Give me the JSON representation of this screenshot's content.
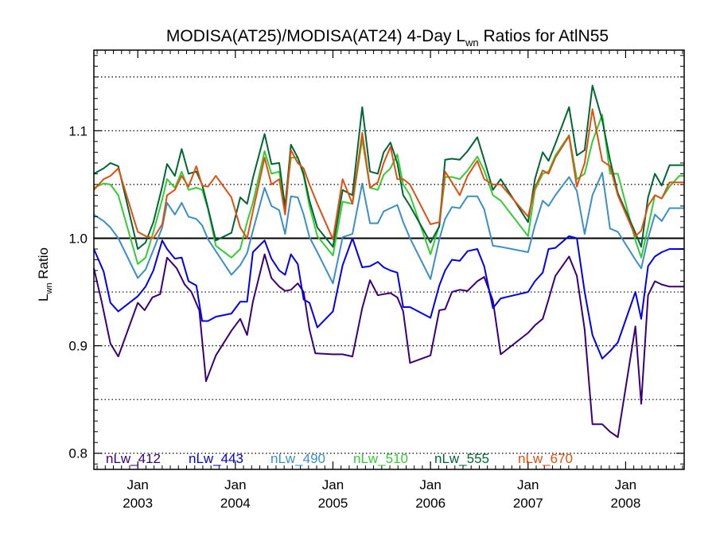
{
  "chart_data": {
    "type": "line",
    "title": {
      "main": "MODISA(AT25)/MODISA(AT24) 4-Day L",
      "sub": "wn",
      "rest": " Ratios for AtlN55"
    },
    "ylabel": {
      "main": "L",
      "sub": "wn",
      "rest": " Ratio"
    },
    "xlim": [
      2002.55,
      2008.6
    ],
    "ylim": [
      0.785,
      1.175
    ],
    "yticks": [
      {
        "value": 0.8,
        "label": "0.8"
      },
      {
        "value": 0.9,
        "label": "0.9"
      },
      {
        "value": 1.0,
        "label": "1.0"
      },
      {
        "value": 1.1,
        "label": "1.1"
      }
    ],
    "gridlines": [
      0.8,
      0.85,
      0.9,
      0.95,
      1.05,
      1.1,
      1.15
    ],
    "reference_line": 1.0,
    "xticks": [
      {
        "value": 2003.0,
        "month": "Jan",
        "year": "2003"
      },
      {
        "value": 2004.0,
        "month": "Jan",
        "year": "2004"
      },
      {
        "value": 2005.0,
        "month": "Jan",
        "year": "2005"
      },
      {
        "value": 2006.0,
        "month": "Jan",
        "year": "2006"
      },
      {
        "value": 2007.0,
        "month": "Jan",
        "year": "2007"
      },
      {
        "value": 2008.0,
        "month": "Jan",
        "year": "2008"
      }
    ],
    "legend_position": "bottom",
    "series": [
      {
        "name": "nLw_412",
        "color": "#3a0078",
        "x": [
          2002.55,
          2002.63,
          2002.72,
          2002.8,
          2003.0,
          2003.07,
          2003.15,
          2003.23,
          2003.3,
          2003.4,
          2003.48,
          2003.55,
          2003.63,
          2003.7,
          2003.8,
          2003.96,
          2004.05,
          2004.12,
          2004.18,
          2004.3,
          2004.37,
          2004.45,
          2004.51,
          2004.57,
          2004.64,
          2004.7,
          2004.76,
          2004.82,
          2005.0,
          2005.1,
          2005.2,
          2005.3,
          2005.38,
          2005.46,
          2005.52,
          2005.59,
          2005.66,
          2005.72,
          2005.79,
          2006.0,
          2006.09,
          2006.15,
          2006.22,
          2006.3,
          2006.38,
          2006.48,
          2006.55,
          2006.64,
          2006.72,
          2007.0,
          2007.07,
          2007.15,
          2007.21,
          2007.28,
          2007.42,
          2007.5,
          2007.58,
          2007.66,
          2007.76,
          2007.84,
          2007.92,
          2008.1,
          2008.16,
          2008.23,
          2008.3,
          2008.37,
          2008.45,
          2008.55,
          2008.6
        ],
        "y": [
          0.972,
          0.941,
          0.902,
          0.89,
          0.94,
          0.933,
          0.945,
          0.948,
          0.982,
          0.972,
          0.957,
          0.95,
          0.933,
          0.867,
          0.891,
          0.914,
          0.925,
          0.91,
          0.941,
          0.985,
          0.963,
          0.955,
          0.951,
          0.952,
          0.958,
          0.95,
          0.915,
          0.893,
          0.892,
          0.892,
          0.89,
          0.935,
          0.961,
          0.947,
          0.948,
          0.949,
          0.945,
          0.932,
          0.884,
          0.891,
          0.933,
          0.934,
          0.95,
          0.952,
          0.951,
          0.96,
          0.964,
          0.942,
          0.892,
          0.912,
          0.919,
          0.925,
          0.943,
          0.965,
          0.983,
          0.965,
          0.915,
          0.827,
          0.827,
          0.82,
          0.815,
          0.918,
          0.846,
          0.947,
          0.96,
          0.957,
          0.955,
          0.955,
          0.955
        ]
      },
      {
        "name": "nLw_443",
        "color": "#0000ee",
        "x": [
          2002.55,
          2002.65,
          2002.72,
          2002.8,
          2003.0,
          2003.08,
          2003.16,
          2003.25,
          2003.3,
          2003.38,
          2003.45,
          2003.52,
          2003.6,
          2003.66,
          2003.72,
          2003.8,
          2003.96,
          2004.05,
          2004.12,
          2004.18,
          2004.3,
          2004.37,
          2004.45,
          2004.51,
          2004.57,
          2004.64,
          2004.7,
          2004.76,
          2004.84,
          2005.0,
          2005.1,
          2005.2,
          2005.3,
          2005.38,
          2005.46,
          2005.52,
          2005.59,
          2005.66,
          2005.72,
          2005.79,
          2006.0,
          2006.09,
          2006.15,
          2006.22,
          2006.3,
          2006.38,
          2006.48,
          2006.55,
          2006.64,
          2006.72,
          2007.0,
          2007.07,
          2007.15,
          2007.21,
          2007.28,
          2007.42,
          2007.5,
          2007.58,
          2007.66,
          2007.76,
          2007.84,
          2007.92,
          2008.1,
          2008.16,
          2008.23,
          2008.3,
          2008.37,
          2008.45,
          2008.55,
          2008.6
        ],
        "y": [
          0.99,
          0.969,
          0.94,
          0.932,
          0.946,
          0.955,
          0.97,
          0.998,
          0.99,
          0.981,
          0.982,
          0.96,
          0.956,
          0.923,
          0.923,
          0.927,
          0.93,
          0.941,
          0.941,
          0.987,
          0.998,
          0.981,
          0.97,
          0.966,
          0.985,
          0.976,
          0.943,
          0.94,
          0.917,
          0.932,
          0.975,
          1.0,
          0.973,
          0.974,
          0.978,
          0.973,
          0.97,
          0.968,
          0.936,
          0.936,
          0.926,
          0.956,
          0.97,
          0.98,
          0.979,
          0.988,
          0.99,
          0.974,
          0.935,
          0.944,
          0.95,
          0.96,
          0.968,
          0.99,
          0.991,
          1.002,
          1.0,
          0.95,
          0.91,
          0.888,
          0.895,
          0.903,
          0.95,
          0.925,
          0.974,
          0.983,
          0.987,
          0.99,
          0.99,
          0.99
        ]
      },
      {
        "name": "nLw_490",
        "color": "#3b8fc7",
        "x": [
          2002.55,
          2002.65,
          2002.72,
          2002.8,
          2003.0,
          2003.08,
          2003.16,
          2003.25,
          2003.3,
          2003.38,
          2003.45,
          2003.52,
          2003.6,
          2003.66,
          2003.72,
          2003.8,
          2003.96,
          2004.05,
          2004.12,
          2004.18,
          2004.3,
          2004.37,
          2004.45,
          2004.51,
          2004.57,
          2004.64,
          2004.7,
          2004.76,
          2004.84,
          2005.0,
          2005.1,
          2005.2,
          2005.3,
          2005.38,
          2005.46,
          2005.52,
          2005.59,
          2005.66,
          2005.72,
          2005.79,
          2006.0,
          2006.09,
          2006.15,
          2006.22,
          2006.3,
          2006.38,
          2006.48,
          2006.55,
          2006.64,
          2006.72,
          2007.0,
          2007.07,
          2007.15,
          2007.21,
          2007.28,
          2007.42,
          2007.5,
          2007.58,
          2007.66,
          2007.76,
          2007.84,
          2007.92,
          2008.1,
          2008.16,
          2008.23,
          2008.3,
          2008.37,
          2008.45,
          2008.55,
          2008.6
        ],
        "y": [
          1.022,
          1.016,
          1.01,
          1.0,
          0.963,
          0.971,
          0.989,
          1.01,
          1.033,
          1.022,
          1.033,
          1.02,
          1.018,
          1.012,
          0.999,
          0.988,
          0.966,
          0.975,
          0.986,
          1.007,
          1.047,
          1.03,
          1.026,
          1.004,
          1.039,
          1.038,
          1.022,
          1.001,
          0.987,
          0.958,
          1.001,
          1.004,
          1.051,
          1.014,
          1.014,
          1.025,
          1.028,
          1.031,
          1.015,
          1.0,
          0.962,
          0.999,
          1.018,
          1.029,
          1.028,
          1.039,
          1.039,
          1.027,
          0.993,
          0.992,
          0.987,
          1.012,
          1.035,
          1.03,
          1.04,
          1.057,
          1.044,
          1.004,
          1.04,
          1.061,
          1.009,
          1.006,
          0.98,
          0.972,
          1.0,
          1.022,
          1.016,
          1.028,
          1.028,
          1.028
        ]
      },
      {
        "name": "nLw_510",
        "color": "#33cc33",
        "x": [
          2002.55,
          2002.65,
          2002.72,
          2002.8,
          2003.0,
          2003.08,
          2003.16,
          2003.25,
          2003.3,
          2003.38,
          2003.45,
          2003.52,
          2003.6,
          2003.66,
          2003.72,
          2003.8,
          2003.96,
          2004.05,
          2004.12,
          2004.18,
          2004.3,
          2004.37,
          2004.45,
          2004.51,
          2004.57,
          2004.64,
          2004.7,
          2004.76,
          2004.84,
          2005.0,
          2005.1,
          2005.2,
          2005.3,
          2005.38,
          2005.46,
          2005.52,
          2005.59,
          2005.66,
          2005.72,
          2005.79,
          2006.0,
          2006.09,
          2006.15,
          2006.22,
          2006.3,
          2006.38,
          2006.48,
          2006.55,
          2006.64,
          2006.72,
          2007.0,
          2007.07,
          2007.15,
          2007.21,
          2007.28,
          2007.42,
          2007.5,
          2007.58,
          2007.66,
          2007.76,
          2007.84,
          2007.92,
          2008.1,
          2008.16,
          2008.23,
          2008.3,
          2008.37,
          2008.45,
          2008.55,
          2008.6
        ],
        "y": [
          1.047,
          1.051,
          1.05,
          1.04,
          0.976,
          0.982,
          1.006,
          1.036,
          1.055,
          1.047,
          1.062,
          1.045,
          1.047,
          1.045,
          1.027,
          0.993,
          0.982,
          0.99,
          1.015,
          1.033,
          1.081,
          1.06,
          1.062,
          1.03,
          1.075,
          1.075,
          1.058,
          1.03,
          1.002,
          0.984,
          1.034,
          1.032,
          1.092,
          1.047,
          1.045,
          1.059,
          1.065,
          1.078,
          1.05,
          1.04,
          0.985,
          1.012,
          1.057,
          1.057,
          1.055,
          1.063,
          1.076,
          1.063,
          1.04,
          1.035,
          1.002,
          1.045,
          1.06,
          1.062,
          1.077,
          1.096,
          1.055,
          1.06,
          1.09,
          1.115,
          1.06,
          1.06,
          0.998,
          0.982,
          1.01,
          1.04,
          1.037,
          1.048,
          1.058,
          1.058
        ]
      },
      {
        "name": "nLw_555",
        "color": "#006633",
        "x": [
          2002.55,
          2002.65,
          2002.72,
          2002.8,
          2003.0,
          2003.08,
          2003.16,
          2003.25,
          2003.3,
          2003.38,
          2003.45,
          2003.52,
          2003.6,
          2003.66,
          2003.72,
          2003.8,
          2003.96,
          2004.05,
          2004.12,
          2004.18,
          2004.3,
          2004.37,
          2004.45,
          2004.51,
          2004.57,
          2004.64,
          2004.7,
          2004.76,
          2004.84,
          2005.0,
          2005.1,
          2005.2,
          2005.3,
          2005.38,
          2005.46,
          2005.52,
          2005.59,
          2005.66,
          2005.72,
          2005.79,
          2006.0,
          2006.09,
          2006.15,
          2006.22,
          2006.3,
          2006.38,
          2006.48,
          2006.55,
          2006.64,
          2006.72,
          2007.0,
          2007.07,
          2007.15,
          2007.21,
          2007.28,
          2007.42,
          2007.5,
          2007.58,
          2007.66,
          2007.76,
          2007.84,
          2007.92,
          2008.1,
          2008.16,
          2008.23,
          2008.3,
          2008.37,
          2008.45,
          2008.55,
          2008.6
        ],
        "y": [
          1.06,
          1.065,
          1.07,
          1.067,
          0.99,
          0.996,
          1.015,
          1.048,
          1.069,
          1.058,
          1.083,
          1.06,
          1.062,
          1.05,
          1.028,
          0.998,
          1.005,
          1.038,
          1.032,
          1.056,
          1.097,
          1.069,
          1.07,
          1.029,
          1.087,
          1.075,
          1.06,
          1.035,
          1.01,
          0.992,
          1.045,
          1.04,
          1.122,
          1.062,
          1.06,
          1.08,
          1.089,
          1.07,
          1.04,
          1.03,
          0.996,
          1.011,
          1.073,
          1.074,
          1.073,
          1.081,
          1.094,
          1.073,
          1.045,
          1.055,
          1.015,
          1.055,
          1.08,
          1.072,
          1.088,
          1.122,
          1.077,
          1.082,
          1.142,
          1.11,
          1.073,
          1.042,
          1.005,
          0.992,
          1.038,
          1.06,
          1.049,
          1.068,
          1.068,
          1.068
        ]
      },
      {
        "name": "nLw_670",
        "color": "#e04f10",
        "x": [
          2002.55,
          2002.65,
          2002.72,
          2002.8,
          2003.0,
          2003.08,
          2003.16,
          2003.25,
          2003.3,
          2003.38,
          2003.45,
          2003.52,
          2003.6,
          2003.66,
          2003.72,
          2003.8,
          2003.96,
          2004.05,
          2004.12,
          2004.18,
          2004.3,
          2004.37,
          2004.45,
          2004.51,
          2004.57,
          2004.64,
          2004.7,
          2004.76,
          2004.84,
          2005.0,
          2005.1,
          2005.2,
          2005.3,
          2005.38,
          2005.46,
          2005.52,
          2005.59,
          2005.66,
          2005.72,
          2005.79,
          2006.0,
          2006.09,
          2006.15,
          2006.22,
          2006.3,
          2006.38,
          2006.48,
          2006.55,
          2006.64,
          2006.72,
          2007.0,
          2007.07,
          2007.15,
          2007.21,
          2007.28,
          2007.42,
          2007.5,
          2007.58,
          2007.66,
          2007.76,
          2007.84,
          2007.92,
          2008.1,
          2008.16,
          2008.23,
          2008.3,
          2008.37,
          2008.45,
          2008.55,
          2008.6
        ],
        "y": [
          1.045,
          1.055,
          1.058,
          1.065,
          1.006,
          1.002,
          1.0,
          1.013,
          1.04,
          1.045,
          1.058,
          1.048,
          1.067,
          1.049,
          1.048,
          1.058,
          1.038,
          1.01,
          1.0,
          1.025,
          1.075,
          1.05,
          1.055,
          1.022,
          1.082,
          1.07,
          1.065,
          1.05,
          1.032,
          0.999,
          1.055,
          1.032,
          1.098,
          1.047,
          1.052,
          1.07,
          1.085,
          1.055,
          1.055,
          1.05,
          1.013,
          1.015,
          1.062,
          1.052,
          1.04,
          1.058,
          1.072,
          1.055,
          1.05,
          1.05,
          1.02,
          1.047,
          1.063,
          1.06,
          1.075,
          1.095,
          1.048,
          1.07,
          1.12,
          1.072,
          1.067,
          1.04,
          1.002,
          1.007,
          1.03,
          1.04,
          1.037,
          1.052,
          1.052,
          1.052
        ]
      }
    ]
  }
}
